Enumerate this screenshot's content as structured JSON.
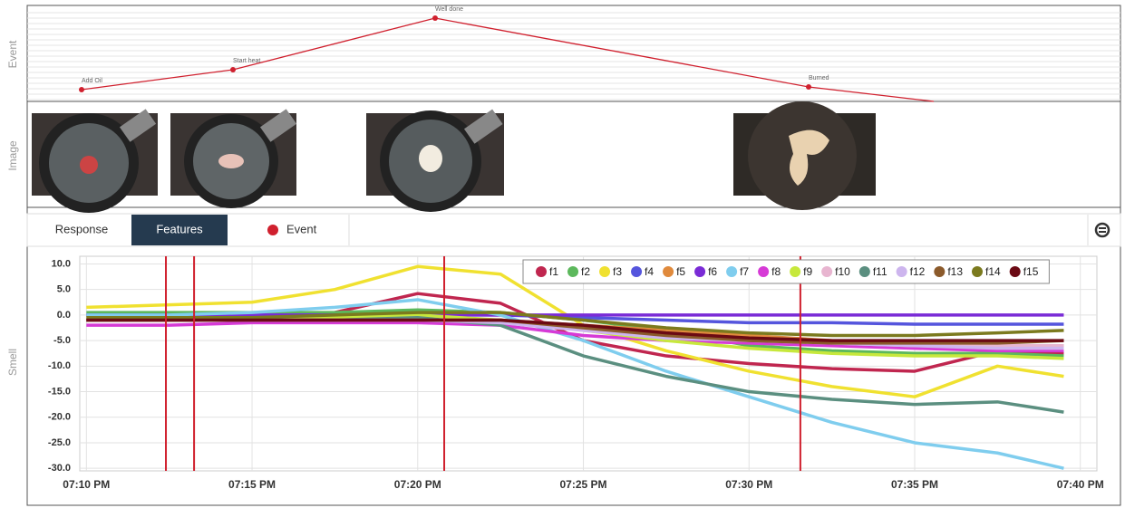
{
  "event_panel": {
    "axis_label": "Event",
    "labels": [
      "Add Oil",
      "Start heat",
      "Well done",
      "Burned"
    ]
  },
  "image_panel": {
    "axis_label": "Image"
  },
  "tabs": [
    "Response",
    "Features",
    "Event"
  ],
  "chart_data": {
    "type": "line",
    "ylabel": "Smell",
    "x": [
      0,
      2.5,
      5,
      7.5,
      10,
      12.5,
      15,
      17.5,
      20,
      22.5,
      25,
      27.5,
      29.5
    ],
    "xlim": [
      -0.2,
      30.5
    ],
    "xticks": [
      {
        "value": 0,
        "label": "07:10 PM"
      },
      {
        "value": 5,
        "label": "07:15 PM"
      },
      {
        "value": 10,
        "label": "07:20 PM"
      },
      {
        "value": 15,
        "label": "07:25 PM"
      },
      {
        "value": 20,
        "label": "07:30 PM"
      },
      {
        "value": 25,
        "label": "07:35 PM"
      },
      {
        "value": 30,
        "label": "07:40 PM"
      }
    ],
    "ylim": [
      -30.5,
      11.5
    ],
    "yticks": [
      {
        "value": 10,
        "label": "10.0"
      },
      {
        "value": 5,
        "label": "5.0"
      },
      {
        "value": 0,
        "label": "0.0"
      },
      {
        "value": -5,
        "label": "-5.0"
      },
      {
        "value": -10,
        "label": "-10.0"
      },
      {
        "value": -15,
        "label": "-15.0"
      },
      {
        "value": -20,
        "label": "-20.0"
      },
      {
        "value": -25,
        "label": "-25.0"
      },
      {
        "value": -30,
        "label": "-30.0"
      }
    ],
    "grid": true,
    "event_lines": {
      "color": "#d0202e",
      "x": [
        2.4,
        3.25,
        10.8,
        21.55
      ]
    },
    "series": [
      {
        "name": "f1",
        "color": "#c0264f",
        "values": [
          -1,
          -1,
          -0.5,
          0.5,
          4.2,
          2.3,
          -5,
          -8,
          -9.5,
          -10.5,
          -11,
          -7,
          -7.5
        ]
      },
      {
        "name": "f2",
        "color": "#5cb85c",
        "values": [
          0.5,
          0.5,
          0.5,
          0.5,
          1,
          0.5,
          -1,
          -3,
          -6,
          -7,
          -7.5,
          -7.5,
          -8
        ]
      },
      {
        "name": "f3",
        "color": "#f0e130",
        "values": [
          1.5,
          2,
          2.5,
          5,
          9.5,
          8,
          -2,
          -7,
          -11,
          -14,
          -16,
          -10,
          -12
        ]
      },
      {
        "name": "f4",
        "color": "#5555dd",
        "values": [
          0,
          0,
          0,
          0,
          0,
          0,
          -0.5,
          -1,
          -1.5,
          -1.5,
          -1.8,
          -1.8,
          -1.8
        ]
      },
      {
        "name": "f5",
        "color": "#e08a3c",
        "values": [
          -1,
          -1,
          -1,
          -1,
          -1,
          -1,
          -2,
          -3,
          -4,
          -5,
          -5.5,
          -6,
          -6
        ]
      },
      {
        "name": "f6",
        "color": "#7a2bd6",
        "values": [
          0,
          0,
          0,
          0,
          0,
          0,
          0,
          0,
          0,
          0,
          0,
          0,
          0
        ]
      },
      {
        "name": "f7",
        "color": "#7fcdee",
        "values": [
          0,
          0,
          0.5,
          1.5,
          3,
          0,
          -5,
          -11,
          -16,
          -21,
          -25,
          -27,
          -30
        ]
      },
      {
        "name": "f8",
        "color": "#d63ad6",
        "values": [
          -2,
          -2,
          -1.5,
          -1.5,
          -1.5,
          -2,
          -4,
          -5,
          -5.5,
          -6,
          -6.5,
          -7,
          -7
        ]
      },
      {
        "name": "f9",
        "color": "#c7e83c",
        "values": [
          -1,
          -1,
          -0.5,
          -0.5,
          0,
          -1,
          -3,
          -5,
          -6.5,
          -7.5,
          -8,
          -8,
          -8.5
        ]
      },
      {
        "name": "f10",
        "color": "#e8b5d0",
        "values": [
          -1,
          -1,
          -1,
          -1,
          -1,
          -1,
          -3,
          -4.5,
          -5,
          -5.5,
          -6,
          -6,
          -6
        ]
      },
      {
        "name": "f11",
        "color": "#5b8f80",
        "values": [
          -1,
          -1,
          -1,
          -1,
          -0.5,
          -2,
          -8,
          -12,
          -15,
          -16.5,
          -17.5,
          -17,
          -19
        ]
      },
      {
        "name": "f12",
        "color": "#cdb5ee",
        "values": [
          -1,
          -1,
          -1,
          -1,
          -1,
          -1.5,
          -3,
          -4.5,
          -5,
          -5.5,
          -6,
          -6.5,
          -6.5
        ]
      },
      {
        "name": "f13",
        "color": "#8b5a2b",
        "values": [
          -1,
          -1,
          -1,
          -1,
          -1,
          -1,
          -2.5,
          -4,
          -5,
          -5.5,
          -5.5,
          -5.5,
          -5
        ]
      },
      {
        "name": "f14",
        "color": "#7b7a1e",
        "values": [
          -0.5,
          -0.5,
          -0.5,
          0,
          0.5,
          0.5,
          -1,
          -2.5,
          -3.5,
          -4,
          -4,
          -3.5,
          -3
        ]
      },
      {
        "name": "f15",
        "color": "#6b0a14",
        "values": [
          -1,
          -1,
          -1,
          -1,
          -1,
          -1,
          -2,
          -3.5,
          -4.5,
          -5,
          -5,
          -5,
          -5
        ]
      }
    ]
  }
}
